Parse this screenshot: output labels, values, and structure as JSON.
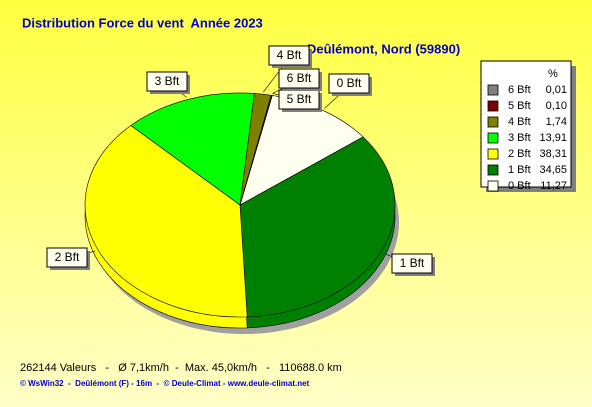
{
  "chart_data": {
    "type": "pie",
    "title": "Distribution Force du vent  Année 2023",
    "subtitle": "Deûlémont, Nord (59890)",
    "legend_title": "%",
    "categories": [
      "6 Bft",
      "5 Bft",
      "4 Bft",
      "3 Bft",
      "2 Bft",
      "1 Bft",
      "0 Bft"
    ],
    "values": [
      0.01,
      0.1,
      1.74,
      13.91,
      38.31,
      34.65,
      11.27
    ],
    "value_labels": [
      "0,01",
      "0,10",
      "1,74",
      "13,91",
      "38,31",
      "34,65",
      "11,27"
    ],
    "colors": [
      "#808080",
      "#800000",
      "#808000",
      "#00ff00",
      "#ffff00",
      "#008000",
      "#fffff0"
    ],
    "legend": "right",
    "footer": "262144 Valeurs   -   Ø 7,1km/h  -  Max. 45,0km/h   -   110688.0 km",
    "credit": "© WsWin32  -  Deûlémont (F) - 16m  -  © Deule-Climat - www.deule-climat.net"
  }
}
